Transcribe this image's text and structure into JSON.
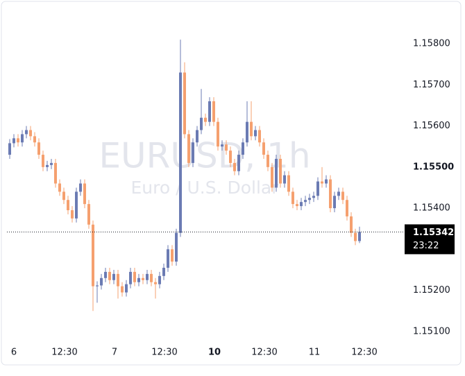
{
  "chart_data": {
    "type": "candlestick",
    "title": "EURUSD, 1h",
    "subtitle": "Euro / U.S. Dollar",
    "up_color": "#6b7bb3",
    "down_color": "#f5a06f",
    "open": [
      1.1553,
      1.15558,
      1.1557,
      1.1556,
      1.1558,
      1.1559,
      1.15575,
      1.1556,
      1.1553,
      1.155,
      1.15505,
      1.1551,
      1.1546,
      1.1544,
      1.1542,
      1.15395,
      1.15375,
      1.1544,
      1.1546,
      1.1541,
      1.1536,
      1.1521,
      1.15212,
      1.1523,
      1.15245,
      1.15225,
      1.1524,
      1.1521,
      1.15195,
      1.15215,
      1.15245,
      1.1522,
      1.1523,
      1.15225,
      1.1524,
      1.1522,
      1.15215,
      1.15235,
      1.15255,
      1.153,
      1.1527,
      1.1534,
      1.1573,
      1.1558,
      1.1551,
      1.1556,
      1.1559,
      1.1562,
      1.1561,
      1.1566,
      1.1561,
      1.1555,
      1.15555,
      1.1554,
      1.1551,
      1.1549,
      1.1553,
      1.1556,
      1.1561,
      1.15575,
      1.1559,
      1.1556,
      1.1553,
      1.155,
      1.1545,
      1.1552,
      1.1546,
      1.1548,
      1.1544,
      1.1541,
      1.15405,
      1.15415,
      1.1542,
      1.15425,
      1.1543,
      1.15465,
      1.1546,
      1.1547,
      1.154,
      1.1543,
      1.1544,
      1.1542,
      1.1538,
      1.1534,
      1.1532
    ],
    "high": [
      1.15568,
      1.1558,
      1.1558,
      1.1559,
      1.156,
      1.156,
      1.15585,
      1.1557,
      1.1554,
      1.15515,
      1.1552,
      1.1552,
      1.1547,
      1.1545,
      1.1543,
      1.15405,
      1.1545,
      1.1547,
      1.1547,
      1.1542,
      1.1537,
      1.15222,
      1.1524,
      1.15255,
      1.15255,
      1.1525,
      1.1525,
      1.1522,
      1.15225,
      1.15255,
      1.15255,
      1.1524,
      1.1524,
      1.1525,
      1.1525,
      1.1523,
      1.15245,
      1.15265,
      1.1531,
      1.1531,
      1.1535,
      1.1581,
      1.15755,
      1.1559,
      1.1557,
      1.156,
      1.1569,
      1.1563,
      1.1567,
      1.1567,
      1.1562,
      1.15565,
      1.15565,
      1.1555,
      1.1552,
      1.1554,
      1.1557,
      1.1566,
      1.1566,
      1.156,
      1.156,
      1.1557,
      1.1554,
      1.1551,
      1.1553,
      1.1553,
      1.1549,
      1.1549,
      1.1545,
      1.1542,
      1.15425,
      1.1543,
      1.15435,
      1.1544,
      1.15475,
      1.155,
      1.1548,
      1.1548,
      1.1544,
      1.1545,
      1.1545,
      1.1543,
      1.1539,
      1.1535,
      1.15355
    ],
    "low": [
      1.1552,
      1.15548,
      1.1555,
      1.1555,
      1.1557,
      1.15565,
      1.1555,
      1.1552,
      1.1549,
      1.1549,
      1.15495,
      1.1545,
      1.1543,
      1.1541,
      1.15385,
      1.15365,
      1.15365,
      1.1543,
      1.154,
      1.1535,
      1.1515,
      1.1517,
      1.15202,
      1.1522,
      1.15215,
      1.15215,
      1.1518,
      1.15185,
      1.15185,
      1.15205,
      1.1521,
      1.1521,
      1.15215,
      1.15215,
      1.1521,
      1.1518,
      1.15205,
      1.15225,
      1.15245,
      1.1526,
      1.1526,
      1.1533,
      1.1557,
      1.155,
      1.155,
      1.1555,
      1.1558,
      1.156,
      1.156,
      1.156,
      1.1554,
      1.1554,
      1.1553,
      1.155,
      1.1548,
      1.1548,
      1.1552,
      1.1555,
      1.15565,
      1.15565,
      1.1555,
      1.1552,
      1.1549,
      1.1544,
      1.1544,
      1.1545,
      1.1545,
      1.1543,
      1.154,
      1.15395,
      1.15395,
      1.15405,
      1.1541,
      1.15415,
      1.1542,
      1.1545,
      1.1545,
      1.1539,
      1.1539,
      1.1542,
      1.1541,
      1.1537,
      1.1533,
      1.1531,
      1.15315
    ],
    "close": [
      1.15558,
      1.1557,
      1.1556,
      1.1558,
      1.1559,
      1.15575,
      1.1556,
      1.1553,
      1.155,
      1.15505,
      1.1551,
      1.1546,
      1.1544,
      1.1542,
      1.15395,
      1.15375,
      1.1544,
      1.1546,
      1.1541,
      1.1536,
      1.1521,
      1.15212,
      1.1523,
      1.15245,
      1.15225,
      1.1524,
      1.1521,
      1.15195,
      1.15215,
      1.15245,
      1.1522,
      1.1523,
      1.15225,
      1.1524,
      1.1522,
      1.15215,
      1.15235,
      1.15255,
      1.153,
      1.1527,
      1.1534,
      1.1573,
      1.1558,
      1.1551,
      1.1556,
      1.1559,
      1.1562,
      1.1561,
      1.1566,
      1.1561,
      1.1555,
      1.15555,
      1.1554,
      1.1551,
      1.1549,
      1.1553,
      1.1556,
      1.1561,
      1.15575,
      1.1559,
      1.1556,
      1.1553,
      1.155,
      1.1545,
      1.1552,
      1.1546,
      1.1548,
      1.1544,
      1.1541,
      1.15405,
      1.15415,
      1.1542,
      1.15425,
      1.1543,
      1.15465,
      1.1546,
      1.1547,
      1.154,
      1.1543,
      1.1544,
      1.1542,
      1.1538,
      1.1534,
      1.1532,
      1.15342
    ],
    "ylim": [
      1.15071,
      1.15898
    ],
    "yticks": [
      {
        "value": 1.151,
        "label": "1.15100"
      },
      {
        "value": 1.152,
        "label": "1.15200"
      },
      {
        "value": 1.154,
        "label": "1.15400"
      },
      {
        "value": 1.155,
        "label": "1.15500",
        "bold": true
      },
      {
        "value": 1.156,
        "label": "1.15600"
      },
      {
        "value": 1.157,
        "label": "1.15700"
      },
      {
        "value": 1.158,
        "label": "1.15800"
      }
    ],
    "xticks": [
      {
        "value": 1,
        "label": "6"
      },
      {
        "value": 13.17,
        "label": "12:30"
      },
      {
        "value": 25.17,
        "label": "7"
      },
      {
        "value": 37.17,
        "label": "12:30"
      },
      {
        "value": 49.17,
        "label": "10",
        "bold": true
      },
      {
        "value": 61.17,
        "label": "12:30"
      },
      {
        "value": 73.17,
        "label": "11"
      },
      {
        "value": 85.17,
        "label": "12:30"
      }
    ],
    "current_price": {
      "value": 1.15342,
      "label": "1.15342"
    },
    "countdown": "23:22"
  }
}
